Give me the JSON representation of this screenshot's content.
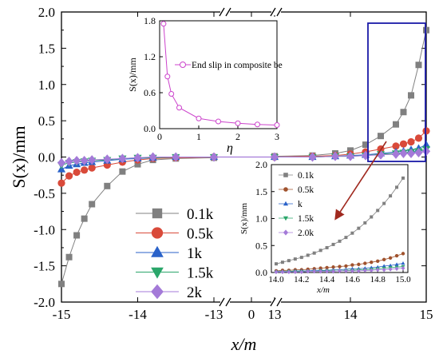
{
  "chart_data": [
    {
      "type": "scatter",
      "title": "",
      "xlabel": "x/m",
      "ylabel": "S(x)/mm",
      "ylim": [
        -2.0,
        2.0
      ],
      "x_ticks": [
        "-15",
        "-14",
        "-13",
        "0",
        "13",
        "14",
        "15"
      ],
      "y_ticks": [
        "2.0",
        "1.5",
        "1.0",
        "0.5",
        "0.0",
        "-0.5",
        "-1.0",
        "-1.5",
        "-2.0"
      ],
      "axis_break": "broken x-axis: -15..-13 | 0 | 13..15",
      "legend_position": "lower-left",
      "x": [
        -15.0,
        -14.9,
        -14.8,
        -14.7,
        -14.6,
        -14.4,
        -14.2,
        -14.0,
        -13.8,
        -13.5,
        -13.0,
        13.0,
        13.5,
        13.8,
        14.0,
        14.2,
        14.4,
        14.6,
        14.7,
        14.8,
        14.9,
        15.0
      ],
      "series": [
        {
          "name": "0.1k",
          "color": "#808080",
          "marker": "square",
          "values": [
            -1.75,
            -1.38,
            -1.08,
            -0.85,
            -0.65,
            -0.4,
            -0.2,
            -0.1,
            -0.04,
            -0.02,
            -0.01,
            0.01,
            0.02,
            0.05,
            0.09,
            0.17,
            0.29,
            0.45,
            0.62,
            0.85,
            1.27,
            1.75
          ]
        },
        {
          "name": "0.5k",
          "color": "#d94a3a",
          "marker": "circle",
          "values": [
            -0.36,
            -0.26,
            -0.21,
            -0.18,
            -0.15,
            -0.11,
            -0.07,
            -0.04,
            -0.02,
            -0.01,
            0.0,
            0.0,
            0.01,
            0.02,
            0.04,
            0.07,
            0.11,
            0.15,
            0.18,
            0.21,
            0.26,
            0.36
          ]
        },
        {
          "name": "1k",
          "color": "#2a62c9",
          "marker": "triangle-up",
          "values": [
            -0.17,
            -0.12,
            -0.1,
            -0.08,
            -0.07,
            -0.05,
            -0.03,
            -0.02,
            -0.01,
            0.0,
            0.0,
            0.0,
            0.0,
            0.01,
            0.02,
            0.03,
            0.05,
            0.07,
            0.08,
            0.1,
            0.12,
            0.17
          ]
        },
        {
          "name": "1.5k",
          "color": "#2aa66a",
          "marker": "triangle-down",
          "values": [
            -0.11,
            -0.08,
            -0.07,
            -0.06,
            -0.05,
            -0.04,
            -0.02,
            -0.01,
            -0.01,
            0.0,
            0.0,
            0.0,
            0.0,
            0.01,
            0.01,
            0.02,
            0.04,
            0.05,
            0.06,
            0.07,
            0.08,
            0.11
          ]
        },
        {
          "name": "2k",
          "color": "#a47ad8",
          "marker": "diamond",
          "values": [
            -0.08,
            -0.06,
            -0.05,
            -0.05,
            -0.04,
            -0.03,
            -0.02,
            -0.01,
            0.0,
            0.0,
            0.0,
            0.0,
            0.0,
            0.01,
            0.01,
            0.02,
            0.03,
            0.04,
            0.05,
            0.05,
            0.06,
            0.08
          ]
        }
      ]
    },
    {
      "type": "line",
      "title": "",
      "xlabel": "η",
      "ylabel": "S(x)/mm",
      "xlim": [
        0,
        3
      ],
      "ylim": [
        0,
        1.8
      ],
      "x_ticks": [
        "0",
        "1",
        "2",
        "3"
      ],
      "y_ticks": [
        "1.8",
        "1.2",
        "0.6",
        "0.0"
      ],
      "legend_position": "top-right",
      "series": [
        {
          "name": "End slip in composite be",
          "color": "#cc44cc",
          "marker": "circle-open",
          "x": [
            0.1,
            0.2,
            0.3,
            0.5,
            1.0,
            1.5,
            2.0,
            2.5,
            3.0
          ],
          "values": [
            1.75,
            0.87,
            0.58,
            0.35,
            0.17,
            0.12,
            0.09,
            0.07,
            0.06
          ]
        }
      ]
    },
    {
      "type": "line",
      "title": "",
      "xlabel": "x/m",
      "ylabel": "S(x)/mm",
      "xlim": [
        14.0,
        15.0
      ],
      "ylim": [
        0,
        2.0
      ],
      "x_ticks": [
        "14.0",
        "14.2",
        "14.4",
        "14.6",
        "14.8",
        "15.0"
      ],
      "y_ticks": [
        "2.0",
        "1.5",
        "1.0",
        "0.5",
        "0.0"
      ],
      "legend_position": "top-left",
      "x": [
        14.0,
        14.05,
        14.1,
        14.15,
        14.2,
        14.25,
        14.3,
        14.35,
        14.4,
        14.45,
        14.5,
        14.55,
        14.6,
        14.65,
        14.7,
        14.75,
        14.8,
        14.85,
        14.9,
        14.95,
        15.0
      ],
      "series": [
        {
          "name": "0.1k",
          "color": "#808080",
          "marker": "square",
          "values": [
            0.16,
            0.19,
            0.22,
            0.25,
            0.28,
            0.32,
            0.36,
            0.41,
            0.46,
            0.52,
            0.58,
            0.65,
            0.73,
            0.82,
            0.92,
            1.03,
            1.15,
            1.28,
            1.42,
            1.58,
            1.75
          ]
        },
        {
          "name": "0.5k",
          "color": "#a0522d",
          "marker": "circle",
          "values": [
            0.03,
            0.04,
            0.04,
            0.05,
            0.05,
            0.06,
            0.07,
            0.08,
            0.09,
            0.1,
            0.11,
            0.12,
            0.14,
            0.15,
            0.17,
            0.19,
            0.21,
            0.24,
            0.27,
            0.31,
            0.35
          ]
        },
        {
          "name": "k",
          "color": "#2a62c9",
          "marker": "triangle-up",
          "values": [
            0.02,
            0.02,
            0.02,
            0.03,
            0.03,
            0.03,
            0.04,
            0.04,
            0.04,
            0.05,
            0.05,
            0.06,
            0.07,
            0.07,
            0.08,
            0.09,
            0.1,
            0.12,
            0.13,
            0.15,
            0.17
          ]
        },
        {
          "name": "1.5k",
          "color": "#2aa66a",
          "marker": "triangle-down",
          "values": [
            0.01,
            0.01,
            0.02,
            0.02,
            0.02,
            0.02,
            0.02,
            0.03,
            0.03,
            0.03,
            0.03,
            0.04,
            0.04,
            0.05,
            0.05,
            0.06,
            0.07,
            0.08,
            0.09,
            0.1,
            0.11
          ]
        },
        {
          "name": "2.0k",
          "color": "#a47ad8",
          "marker": "diamond",
          "values": [
            0.01,
            0.01,
            0.01,
            0.01,
            0.01,
            0.02,
            0.02,
            0.02,
            0.02,
            0.02,
            0.03,
            0.03,
            0.03,
            0.03,
            0.04,
            0.04,
            0.05,
            0.05,
            0.06,
            0.07,
            0.08
          ]
        }
      ]
    }
  ]
}
